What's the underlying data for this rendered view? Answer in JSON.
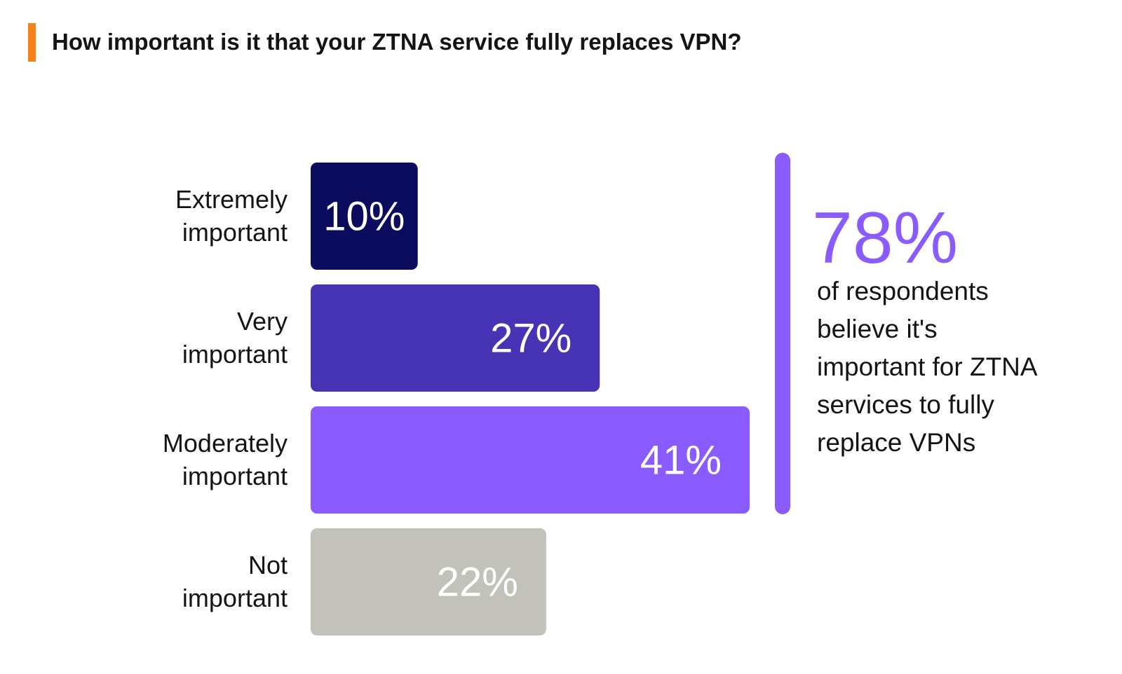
{
  "title": "How important is it that your ZTNA service fully replaces VPN?",
  "colors": {
    "title_accent": "#f7821b",
    "callout": "#8a5cff"
  },
  "chart_data": {
    "type": "bar",
    "orientation": "horizontal",
    "title": "How important is it that your ZTNA service fully replaces VPN?",
    "categories": [
      [
        "Extremely",
        "important"
      ],
      [
        "Very",
        "important"
      ],
      [
        "Moderately",
        "important"
      ],
      [
        "Not",
        "important"
      ]
    ],
    "values": [
      10,
      27,
      41,
      22
    ],
    "value_labels": [
      "10%",
      "27%",
      "41%",
      "22%"
    ],
    "unit": "%",
    "bar_colors": [
      "#0c0c5e",
      "#4634b5",
      "#8a5cff",
      "#c2c2ba"
    ],
    "xlim": [
      0,
      41
    ],
    "grid": false,
    "legend": "none"
  },
  "callout": {
    "value": "78%",
    "lines": [
      "of respondents",
      "believe it's",
      "important for ZTNA",
      "services to fully",
      "replace VPNs"
    ]
  }
}
